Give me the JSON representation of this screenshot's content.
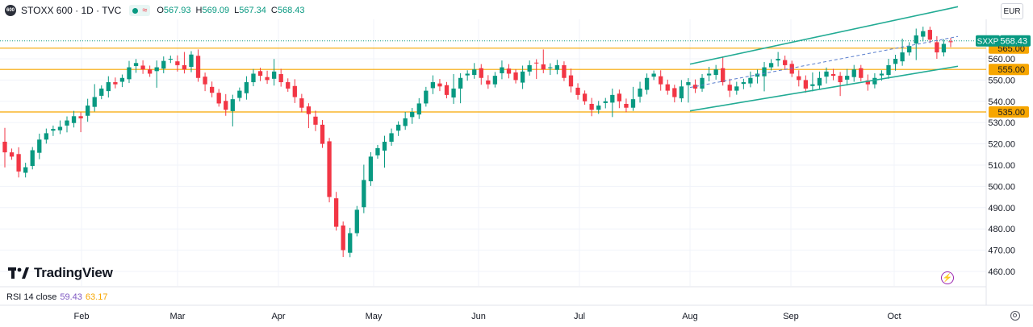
{
  "header": {
    "symbol": "STOXX 600 · 1D · TVC",
    "logo": "600",
    "ohlc": [
      {
        "k": "O",
        "v": "567.93"
      },
      {
        "k": "H",
        "v": "569.09"
      },
      {
        "k": "L",
        "v": "567.34"
      },
      {
        "k": "C",
        "v": "568.43"
      }
    ],
    "currency": "EUR"
  },
  "indicator": {
    "name": "RSI 14 close",
    "value1": "59.43",
    "value2": "63.17"
  },
  "brand": "TradingView",
  "colors": {
    "up": "#089981",
    "down": "#f23645",
    "level": "#f7a600",
    "channel": "#22ab94",
    "axis_text": "#131722"
  },
  "chart_data": {
    "type": "candlestick",
    "title": "STOXX 600 · 1D · TVC",
    "ylim": [
      455,
      585
    ],
    "y_ticks": [
      460,
      470,
      480,
      490,
      500,
      510,
      520,
      530,
      540,
      550,
      560
    ],
    "x_ticks": [
      "Feb",
      "Mar",
      "Apr",
      "May",
      "Jun",
      "Jul",
      "Aug",
      "Sep",
      "Oct"
    ],
    "last_price": {
      "label": "SXXP",
      "value": 568.43
    },
    "levels": [
      565.0,
      555.0,
      535.0
    ],
    "channel": [
      {
        "from": [
          "Aug",
          557.5
        ],
        "to": [
          "Oct+",
          584.5
        ]
      },
      {
        "from": [
          "Aug",
          535.5
        ],
        "to": [
          "Oct+",
          556.5
        ]
      }
    ],
    "closes": [
      516,
      514,
      507,
      509,
      517,
      522,
      525,
      527,
      528,
      531,
      533,
      532,
      538,
      542,
      546,
      549,
      548,
      551,
      556,
      558,
      555,
      553,
      556,
      559,
      560,
      557,
      555,
      562,
      551,
      548,
      544,
      539,
      536,
      541,
      545,
      549,
      553,
      552,
      550,
      554,
      549,
      546,
      542,
      537,
      534,
      529,
      520,
      495,
      481,
      470,
      478,
      489,
      503,
      514,
      518,
      521,
      525,
      529,
      532,
      535,
      539,
      545,
      549,
      547,
      543,
      546,
      551,
      553,
      555,
      551,
      548,
      552,
      556,
      553,
      550,
      554,
      557,
      558,
      555,
      556,
      557,
      551,
      547,
      543,
      540,
      536,
      538,
      540,
      543,
      540,
      537,
      541,
      546,
      551,
      553,
      548,
      545,
      542,
      547,
      549,
      546,
      551,
      553,
      555,
      549,
      545,
      547,
      549,
      551,
      553,
      556,
      558,
      560,
      557,
      553,
      550,
      546,
      548,
      551,
      554,
      552,
      549,
      552,
      555,
      551,
      548,
      551,
      553,
      557,
      560,
      563,
      566,
      571,
      573,
      569,
      563,
      567,
      568
    ]
  }
}
